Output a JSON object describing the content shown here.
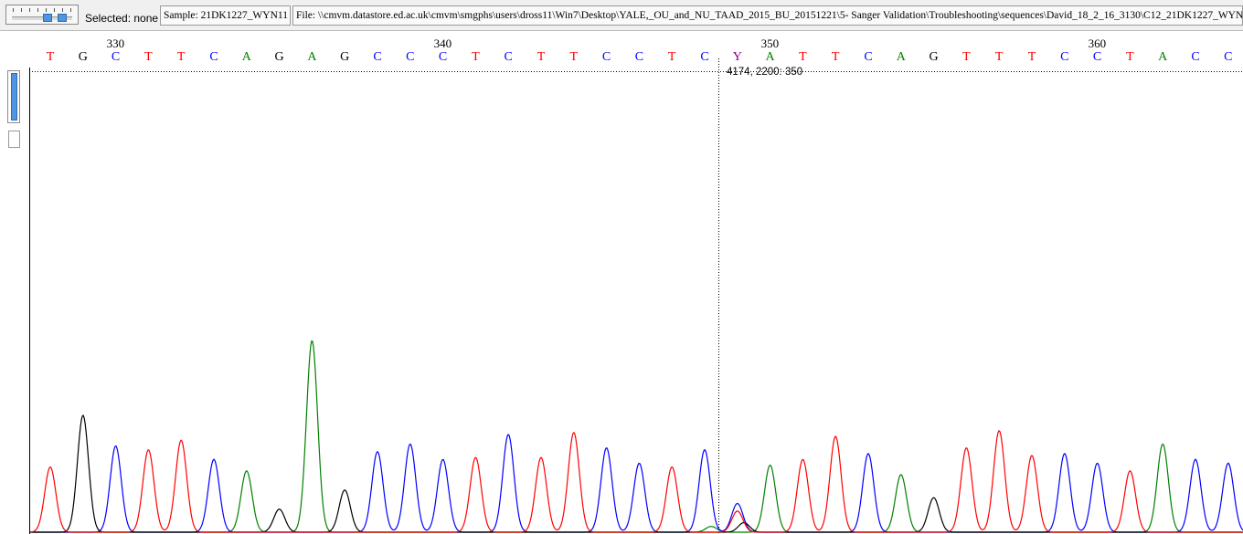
{
  "toolbar": {
    "selected_label": "Selected: none",
    "sample_label": "Sample: 21DK1227_WYN11",
    "file_label": "File: \\\\cmvm.datastore.ed.ac.uk\\cmvm\\smgphs\\users\\dross11\\Win7\\Desktop\\YALE,_OU_and_NU_TAAD_2015_BU_20151221\\5- Sanger Validation\\Troubleshooting\\sequences\\David_18_2_16_3130\\C12_21DK1227_WYN"
  },
  "cursor_readout": "4174, 2200: 350",
  "colors": {
    "A": "#008000",
    "C": "#0000ff",
    "G": "#000000",
    "T": "#ff0000",
    "Y": "#800080"
  },
  "ruler": [
    {
      "label": "330",
      "pos": 330
    },
    {
      "label": "340",
      "pos": 340
    },
    {
      "label": "350",
      "pos": 350
    },
    {
      "label": "360",
      "pos": 360
    }
  ],
  "bases": [
    {
      "pos": 328,
      "base": "T"
    },
    {
      "pos": 329,
      "base": "G"
    },
    {
      "pos": 330,
      "base": "C"
    },
    {
      "pos": 331,
      "base": "T"
    },
    {
      "pos": 332,
      "base": "T"
    },
    {
      "pos": 333,
      "base": "C"
    },
    {
      "pos": 334,
      "base": "A"
    },
    {
      "pos": 335,
      "base": "G"
    },
    {
      "pos": 336,
      "base": "A"
    },
    {
      "pos": 337,
      "base": "G"
    },
    {
      "pos": 338,
      "base": "C"
    },
    {
      "pos": 339,
      "base": "C"
    },
    {
      "pos": 340,
      "base": "C"
    },
    {
      "pos": 341,
      "base": "T"
    },
    {
      "pos": 342,
      "base": "C"
    },
    {
      "pos": 343,
      "base": "T"
    },
    {
      "pos": 344,
      "base": "T"
    },
    {
      "pos": 345,
      "base": "C"
    },
    {
      "pos": 346,
      "base": "C"
    },
    {
      "pos": 347,
      "base": "T"
    },
    {
      "pos": 348,
      "base": "C"
    },
    {
      "pos": 349,
      "base": "Y"
    },
    {
      "pos": 350,
      "base": "A"
    },
    {
      "pos": 351,
      "base": "T"
    },
    {
      "pos": 352,
      "base": "T"
    },
    {
      "pos": 353,
      "base": "C"
    },
    {
      "pos": 354,
      "base": "A"
    },
    {
      "pos": 355,
      "base": "G"
    },
    {
      "pos": 356,
      "base": "T"
    },
    {
      "pos": 357,
      "base": "T"
    },
    {
      "pos": 358,
      "base": "T"
    },
    {
      "pos": 359,
      "base": "C"
    },
    {
      "pos": 360,
      "base": "C"
    },
    {
      "pos": 361,
      "base": "T"
    },
    {
      "pos": 362,
      "base": "A"
    },
    {
      "pos": 363,
      "base": "C"
    },
    {
      "pos": 364,
      "base": "C"
    }
  ],
  "peaks": [
    {
      "channel": "A",
      "pos": 334.0,
      "h": 0.32
    },
    {
      "channel": "A",
      "pos": 336.0,
      "h": 1.0
    },
    {
      "channel": "A",
      "pos": 350.0,
      "h": 0.35
    },
    {
      "channel": "A",
      "pos": 354.0,
      "h": 0.3
    },
    {
      "channel": "A",
      "pos": 362.0,
      "h": 0.46
    },
    {
      "channel": "A",
      "pos": 348.2,
      "h": 0.03
    },
    {
      "channel": "C",
      "pos": 330.0,
      "h": 0.45
    },
    {
      "channel": "C",
      "pos": 333.0,
      "h": 0.38
    },
    {
      "channel": "C",
      "pos": 338.0,
      "h": 0.42
    },
    {
      "channel": "C",
      "pos": 339.0,
      "h": 0.46
    },
    {
      "channel": "C",
      "pos": 340.0,
      "h": 0.38
    },
    {
      "channel": "C",
      "pos": 342.0,
      "h": 0.51
    },
    {
      "channel": "C",
      "pos": 345.0,
      "h": 0.44
    },
    {
      "channel": "C",
      "pos": 346.0,
      "h": 0.36
    },
    {
      "channel": "C",
      "pos": 348.0,
      "h": 0.43
    },
    {
      "channel": "C",
      "pos": 349.0,
      "h": 0.15
    },
    {
      "channel": "C",
      "pos": 353.0,
      "h": 0.41
    },
    {
      "channel": "C",
      "pos": 359.0,
      "h": 0.41
    },
    {
      "channel": "C",
      "pos": 360.0,
      "h": 0.36
    },
    {
      "channel": "C",
      "pos": 363.0,
      "h": 0.38
    },
    {
      "channel": "C",
      "pos": 364.0,
      "h": 0.36
    },
    {
      "channel": "G",
      "pos": 329.0,
      "h": 0.61
    },
    {
      "channel": "G",
      "pos": 335.0,
      "h": 0.12
    },
    {
      "channel": "G",
      "pos": 337.0,
      "h": 0.22
    },
    {
      "channel": "G",
      "pos": 355.0,
      "h": 0.18
    },
    {
      "channel": "G",
      "pos": 349.2,
      "h": 0.05
    },
    {
      "channel": "T",
      "pos": 328.0,
      "h": 0.34
    },
    {
      "channel": "T",
      "pos": 331.0,
      "h": 0.43
    },
    {
      "channel": "T",
      "pos": 332.0,
      "h": 0.48
    },
    {
      "channel": "T",
      "pos": 341.0,
      "h": 0.39
    },
    {
      "channel": "T",
      "pos": 343.0,
      "h": 0.39
    },
    {
      "channel": "T",
      "pos": 344.0,
      "h": 0.52
    },
    {
      "channel": "T",
      "pos": 347.0,
      "h": 0.34
    },
    {
      "channel": "T",
      "pos": 349.0,
      "h": 0.11
    },
    {
      "channel": "T",
      "pos": 351.0,
      "h": 0.38
    },
    {
      "channel": "T",
      "pos": 352.0,
      "h": 0.5
    },
    {
      "channel": "T",
      "pos": 356.0,
      "h": 0.44
    },
    {
      "channel": "T",
      "pos": 357.0,
      "h": 0.53
    },
    {
      "channel": "T",
      "pos": 358.0,
      "h": 0.4
    },
    {
      "channel": "T",
      "pos": 361.0,
      "h": 0.32
    }
  ]
}
